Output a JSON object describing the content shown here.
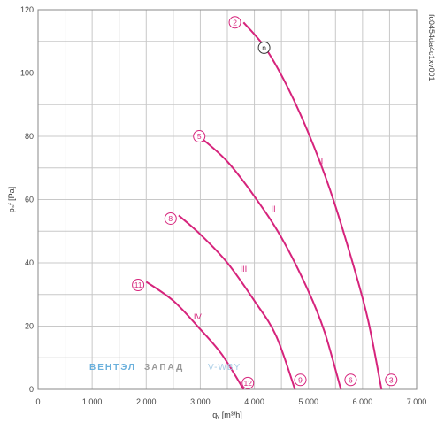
{
  "chart_data": {
    "type": "line",
    "ylabel": "pₛf [Pa]",
    "xlabel": "qᵥ [m³/h]",
    "code": "fc0454da4c1xv001",
    "xlim": [
      0,
      7000
    ],
    "ylim": [
      0,
      120
    ],
    "x_ticks": [
      0,
      1000,
      2000,
      3000,
      4000,
      5000,
      6000,
      7000
    ],
    "x_tick_labels": [
      "0",
      "1.000",
      "2.000",
      "3.000",
      "4.000",
      "5.000",
      "6.000",
      "7.000"
    ],
    "y_ticks": [
      0,
      20,
      40,
      60,
      80,
      100,
      120
    ],
    "y_tick_labels": [
      "0",
      "20",
      "40",
      "60",
      "80",
      "100",
      "120"
    ],
    "grid": true,
    "colors": {
      "curve": "#d6247c",
      "grid": "#c8c8c8",
      "marker_n": "#333333"
    },
    "series": [
      {
        "name": "I",
        "label_at": [
          5250,
          72
        ],
        "x": [
          3800,
          4200,
          4600,
          5000,
          5400,
          5800,
          6100,
          6350
        ],
        "y": [
          116,
          108,
          96,
          81,
          63,
          41,
          22,
          0
        ]
      },
      {
        "name": "II",
        "label_at": [
          4350,
          57
        ],
        "x": [
          3050,
          3500,
          4000,
          4500,
          5000,
          5300,
          5600
        ],
        "y": [
          79,
          72,
          61,
          48,
          31,
          18,
          0
        ]
      },
      {
        "name": "III",
        "label_at": [
          3800,
          38
        ],
        "x": [
          2600,
          3000,
          3500,
          4000,
          4400,
          4750
        ],
        "y": [
          55,
          49,
          40,
          28,
          17,
          0
        ]
      },
      {
        "name": "IV",
        "label_at": [
          2950,
          23
        ],
        "x": [
          2000,
          2500,
          3000,
          3400,
          3800
        ],
        "y": [
          34,
          28,
          19,
          11,
          0
        ]
      }
    ],
    "points": [
      {
        "label": "2",
        "x": 3640,
        "y": 116,
        "style": "pink"
      },
      {
        "label": "n",
        "x": 4180,
        "y": 108,
        "style": "dark"
      },
      {
        "label": "5",
        "x": 2980,
        "y": 80,
        "style": "pink"
      },
      {
        "label": "8",
        "x": 2450,
        "y": 54,
        "style": "pink"
      },
      {
        "label": "11",
        "x": 1850,
        "y": 33,
        "style": "pink"
      },
      {
        "label": "3",
        "x": 6530,
        "y": 3,
        "style": "pink"
      },
      {
        "label": "6",
        "x": 5780,
        "y": 3,
        "style": "pink"
      },
      {
        "label": "9",
        "x": 4850,
        "y": 3,
        "style": "pink"
      },
      {
        "label": "12",
        "x": 3880,
        "y": 2,
        "style": "pink"
      }
    ]
  },
  "watermark": {
    "part1": "ВЕНТЭЛ",
    "part2": "ЗАПАД",
    "part3": "V-WBY"
  }
}
